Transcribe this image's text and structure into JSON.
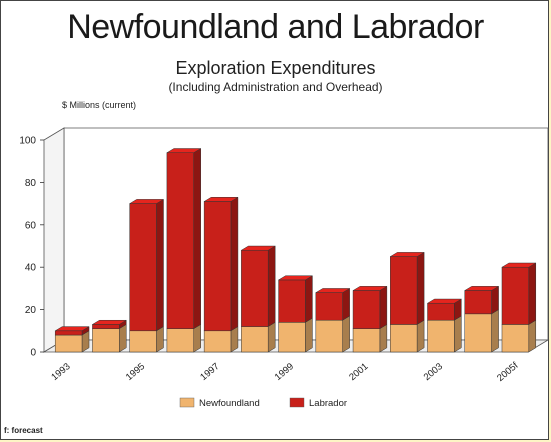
{
  "chart_data": {
    "type": "bar",
    "stacked": true,
    "three_d": true,
    "title": "Newfoundland and Labrador",
    "subtitle": "Exploration Expenditures",
    "subtitle2": "(Including Administration and Overhead)",
    "ylabel": "$ Millions (current)",
    "xlabel": "",
    "ylim": [
      0,
      100
    ],
    "yticks": [
      0,
      20,
      40,
      60,
      80,
      100
    ],
    "categories": [
      "1993",
      "1994",
      "1995",
      "1996",
      "1997",
      "1998",
      "1999",
      "2000",
      "2001",
      "2002",
      "2003",
      "2004",
      "2005f"
    ],
    "xtick_labels": [
      "1993",
      "1995",
      "1997",
      "1999",
      "2001",
      "2003",
      "2005f"
    ],
    "series": [
      {
        "name": "Newfoundland",
        "color": "#f0b46e",
        "values": [
          8,
          11,
          10,
          11,
          10,
          12,
          14,
          15,
          11,
          13,
          15,
          18,
          13
        ]
      },
      {
        "name": "Labrador",
        "color": "#c8201a",
        "values": [
          2,
          2,
          60,
          83,
          61,
          36,
          20,
          13,
          18,
          32,
          8,
          11,
          27
        ]
      }
    ],
    "grid": false,
    "legend_position": "bottom"
  },
  "footnote": "f: forecast"
}
